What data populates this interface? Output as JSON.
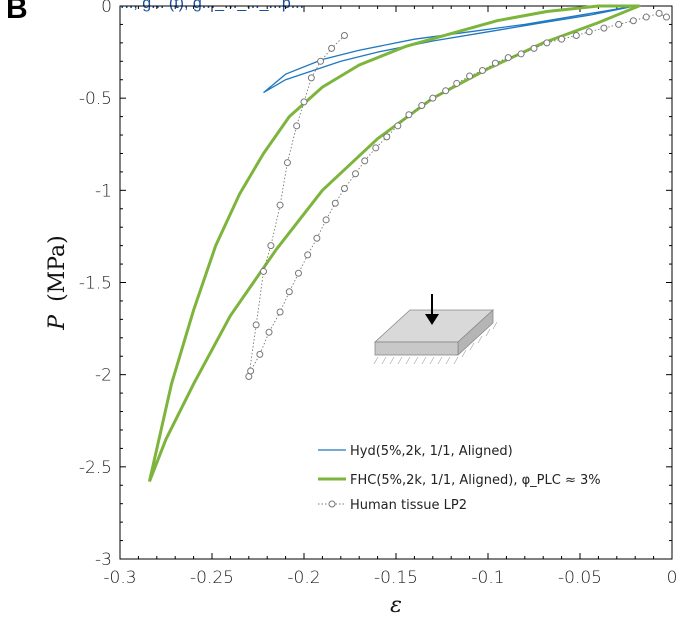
{
  "panel_letter": "B",
  "top_title": "..., g... (t), g..._..._..._...p...",
  "chart_data": {
    "type": "line",
    "xlabel": "ε",
    "ylabel_symbol": "P",
    "ylabel_unit": "(MPa)",
    "xlim": [
      -0.3,
      0
    ],
    "ylim": [
      -3,
      0
    ],
    "x_ticks": [
      -0.3,
      -0.25,
      -0.2,
      -0.15,
      -0.1,
      -0.05,
      0
    ],
    "x_tick_labels": [
      "-0.3",
      "-0.25",
      "-0.2",
      "-0.15",
      "-0.1",
      "-0.05",
      "0"
    ],
    "y_ticks": [
      0,
      -0.5,
      -1,
      -1.5,
      -2,
      -2.5,
      -3
    ],
    "y_tick_labels": [
      "0",
      "-0.5",
      "-1",
      "-1.5",
      "-2",
      "-2.5",
      "-3"
    ],
    "grid": false,
    "legend_position": "bottom-right",
    "colors": {
      "hyd": "#1f78c1",
      "fhc": "#7db43c",
      "human": "#777777"
    },
    "series": [
      {
        "name": "Hyd(5%,2k, 1/1, Aligned)",
        "style": "thin-line",
        "x": [
          -0.222,
          -0.21,
          -0.195,
          -0.18,
          -0.16,
          -0.13,
          -0.1,
          -0.07,
          -0.045,
          -0.02,
          -0.05,
          -0.08,
          -0.11,
          -0.14,
          -0.17,
          -0.19,
          -0.21,
          -0.222
        ],
        "y": [
          -0.47,
          -0.4,
          -0.35,
          -0.3,
          -0.25,
          -0.19,
          -0.14,
          -0.09,
          -0.05,
          0.0,
          -0.05,
          -0.1,
          -0.14,
          -0.18,
          -0.24,
          -0.29,
          -0.37,
          -0.47
        ]
      },
      {
        "name": "FHC(5%,2k, 1/1, Aligned), φ_PLC ≈ 3%",
        "style": "thick-line",
        "x": [
          -0.284,
          -0.272,
          -0.26,
          -0.248,
          -0.235,
          -0.222,
          -0.208,
          -0.19,
          -0.17,
          -0.145,
          -0.12,
          -0.095,
          -0.068,
          -0.04,
          -0.018,
          -0.04,
          -0.07,
          -0.1,
          -0.13,
          -0.16,
          -0.19,
          -0.215,
          -0.24,
          -0.26,
          -0.275,
          -0.284
        ],
        "y": [
          -2.58,
          -2.05,
          -1.65,
          -1.3,
          -1.02,
          -0.8,
          -0.6,
          -0.44,
          -0.32,
          -0.22,
          -0.15,
          -0.08,
          -0.03,
          0.0,
          0.0,
          -0.09,
          -0.2,
          -0.34,
          -0.5,
          -0.72,
          -1.0,
          -1.32,
          -1.68,
          -2.05,
          -2.35,
          -2.58
        ]
      },
      {
        "name": "Human tissue LP2",
        "style": "dotted-markers",
        "x": [
          -0.178,
          -0.185,
          -0.191,
          -0.196,
          -0.2,
          -0.204,
          -0.209,
          -0.213,
          -0.218,
          -0.222,
          -0.226,
          -0.23,
          -0.229,
          -0.224,
          -0.219,
          -0.213,
          -0.208,
          -0.203,
          -0.198,
          -0.193,
          -0.188,
          -0.183,
          -0.178,
          -0.172,
          -0.167,
          -0.161,
          -0.155,
          -0.149,
          -0.143,
          -0.136,
          -0.13,
          -0.123,
          -0.117,
          -0.11,
          -0.103,
          -0.096,
          -0.089,
          -0.082,
          -0.075,
          -0.068,
          -0.06,
          -0.052,
          -0.045,
          -0.037,
          -0.029,
          -0.021,
          -0.014,
          -0.007,
          -0.003
        ],
        "y": [
          -0.16,
          -0.23,
          -0.3,
          -0.39,
          -0.52,
          -0.65,
          -0.85,
          -1.08,
          -1.3,
          -1.44,
          -1.73,
          -2.01,
          -1.98,
          -1.89,
          -1.77,
          -1.66,
          -1.55,
          -1.45,
          -1.35,
          -1.26,
          -1.16,
          -1.07,
          -0.99,
          -0.91,
          -0.84,
          -0.77,
          -0.71,
          -0.65,
          -0.59,
          -0.54,
          -0.5,
          -0.46,
          -0.42,
          -0.38,
          -0.35,
          -0.31,
          -0.28,
          -0.26,
          -0.23,
          -0.2,
          -0.18,
          -0.16,
          -0.14,
          -0.12,
          -0.1,
          -0.08,
          -0.06,
          -0.04,
          -0.06
        ]
      }
    ]
  }
}
